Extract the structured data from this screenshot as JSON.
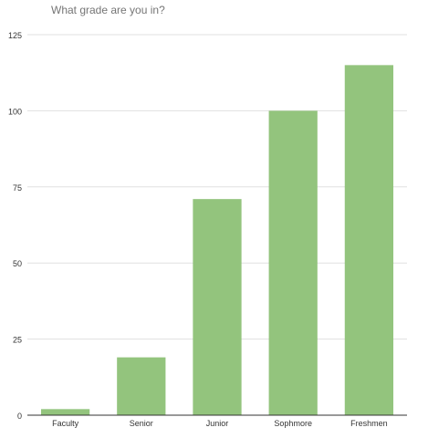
{
  "chart_data": {
    "type": "bar",
    "title": "What grade are you in?",
    "categories": [
      "Faculty",
      "Senior",
      "Junior",
      "Sophmore",
      "Freshmen"
    ],
    "values": [
      2,
      19,
      71,
      100,
      115
    ],
    "xlabel": "",
    "ylabel": "",
    "ylim": [
      0,
      125
    ],
    "yticks": [
      "0",
      "25",
      "50",
      "75",
      "100",
      "125"
    ],
    "grid": true,
    "legend": "none",
    "colors": {
      "bar": "#93c47d",
      "grid": "#e0e0e0",
      "axis": "#333333",
      "tick_label": "#333333",
      "title": "#757575"
    }
  }
}
